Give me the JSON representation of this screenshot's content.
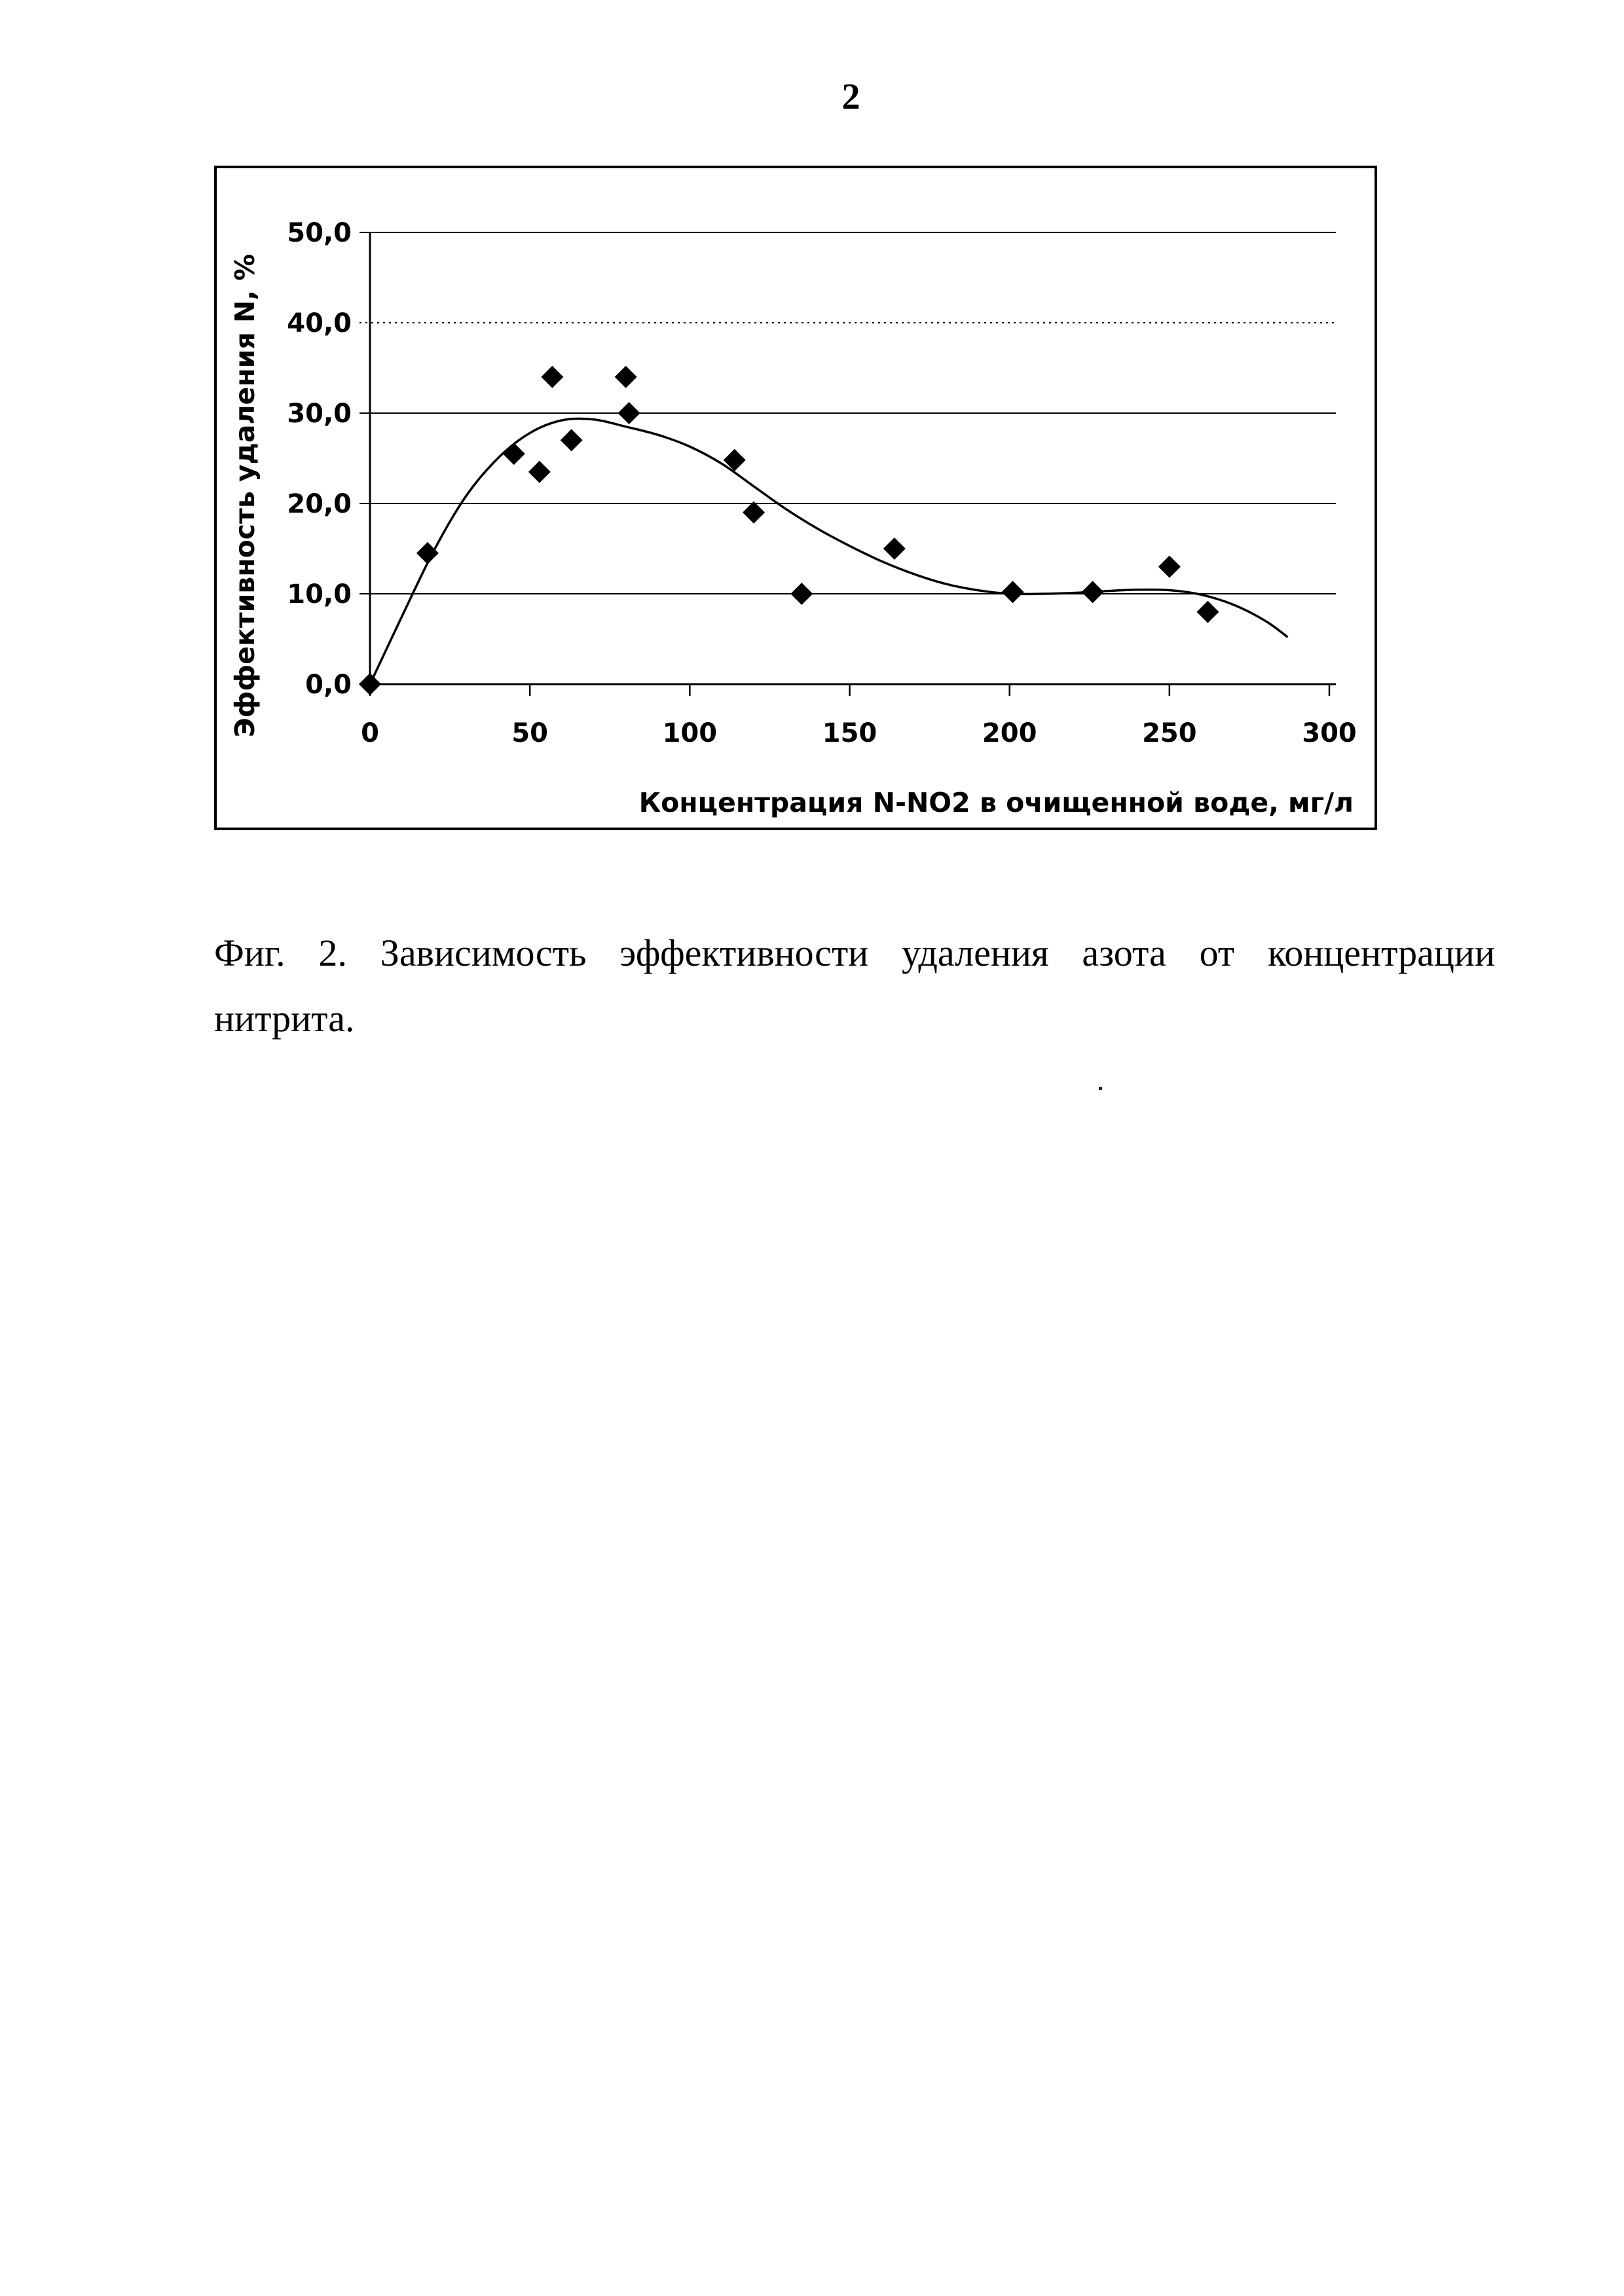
{
  "page": {
    "number": "2",
    "background_color": "#ffffff",
    "ink_color": "#000000"
  },
  "figure": {
    "caption_line1": "Фиг. 2. Зависимость эффективности удаления азота от концентрации",
    "caption_line2": "нитрита."
  },
  "chart_data": {
    "type": "scatter",
    "title": "",
    "xlabel": "Концентрация N-NO2 в очищенной воде, мг/л",
    "ylabel": "Эффективность удаления N, %",
    "xlim": [
      0,
      300
    ],
    "ylim": [
      0,
      50
    ],
    "grid": "horizontal",
    "dotted_gridline_values": [
      40
    ],
    "legend": "none",
    "marker": "diamond",
    "x_ticks": [
      {
        "value": 0,
        "label": "0"
      },
      {
        "value": 50,
        "label": "50"
      },
      {
        "value": 100,
        "label": "100"
      },
      {
        "value": 150,
        "label": "150"
      },
      {
        "value": 200,
        "label": "200"
      },
      {
        "value": 250,
        "label": "250"
      },
      {
        "value": 300,
        "label": "300"
      }
    ],
    "y_ticks": [
      {
        "value": 0,
        "label": "0,0"
      },
      {
        "value": 10,
        "label": "10,0"
      },
      {
        "value": 20,
        "label": "20,0"
      },
      {
        "value": 30,
        "label": "30,0"
      },
      {
        "value": 40,
        "label": "40,0"
      },
      {
        "value": 50,
        "label": "50,0"
      }
    ],
    "points": [
      [
        0,
        0
      ],
      [
        18,
        14.5
      ],
      [
        45,
        25.5
      ],
      [
        53,
        23.5
      ],
      [
        57,
        34
      ],
      [
        63,
        27
      ],
      [
        80,
        34
      ],
      [
        81,
        30
      ],
      [
        114,
        24.8
      ],
      [
        120,
        19
      ],
      [
        135,
        10
      ],
      [
        164,
        15
      ],
      [
        201,
        10.2
      ],
      [
        226,
        10.2
      ],
      [
        250,
        13
      ],
      [
        262,
        8
      ]
    ],
    "trend_curve": [
      [
        0,
        0
      ],
      [
        10,
        7.5
      ],
      [
        20,
        14.8
      ],
      [
        30,
        20.8
      ],
      [
        40,
        25
      ],
      [
        50,
        27.8
      ],
      [
        60,
        29.2
      ],
      [
        70,
        29.3
      ],
      [
        80,
        28.5
      ],
      [
        90,
        27.6
      ],
      [
        100,
        26.3
      ],
      [
        110,
        24.4
      ],
      [
        120,
        21.9
      ],
      [
        130,
        19.4
      ],
      [
        140,
        17.2
      ],
      [
        150,
        15.3
      ],
      [
        160,
        13.6
      ],
      [
        170,
        12.2
      ],
      [
        180,
        11.1
      ],
      [
        190,
        10.4
      ],
      [
        200,
        10.0
      ],
      [
        210,
        10.0
      ],
      [
        220,
        10.1
      ],
      [
        230,
        10.3
      ],
      [
        240,
        10.45
      ],
      [
        250,
        10.4
      ],
      [
        260,
        9.9
      ],
      [
        270,
        8.8
      ],
      [
        280,
        7.0
      ],
      [
        287,
        5.2
      ]
    ]
  }
}
